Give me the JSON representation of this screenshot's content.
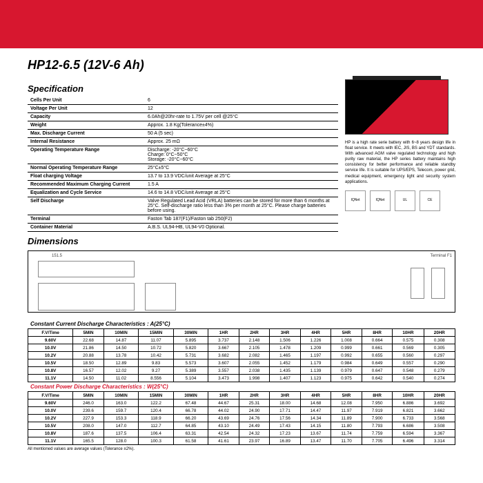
{
  "title": "HP12-6.5 (12V-6 Ah)",
  "sections": {
    "spec": "Specification",
    "dims": "Dimensions"
  },
  "spec": [
    {
      "label": "Cells Per Unit",
      "value": "6"
    },
    {
      "label": "Voltage Per Unit",
      "value": "12"
    },
    {
      "label": "Capacity",
      "value": "6.0Ah@20hr-rate to 1.75V per cell @25°C"
    },
    {
      "label": "Weight",
      "value": "Approx. 1.8 Kg(Tolerance±4%)"
    },
    {
      "label": "Max. Discharge Current",
      "value": "50 A (5 sec)"
    },
    {
      "label": "Internal Resistance",
      "value": "Approx. 25 mΩ"
    },
    {
      "label": "Operating Temperature Range",
      "value": "Discharge: -20°C~60°C\nCharge: 0°C~50°C\nStorage: -20°C~60°C"
    },
    {
      "label": "Normal Operating Temperature Range",
      "value": "25°C±5°C"
    },
    {
      "label": "Float charging Voltage",
      "value": "13.7 to 13.9 VDC/unit Average at 25°C"
    },
    {
      "label": "Recommended Maximum Charging Current",
      "value": "1.5 A"
    },
    {
      "label": "Equalization and Cycle Service",
      "value": "14.6 to 14.8 VDC/unit Average at 25°C"
    },
    {
      "label": "Self Discharge",
      "value": "Valve Regulated Lead Acid (VRLA) batteries can be  stored for more than 6 months at 25°C. Self-discharge ratio less than 3% per month at 25°C. Please charge batteries before using."
    },
    {
      "label": "Terminal",
      "value": "Faston Tab 187(F1)/Faston tab 250(F2)"
    },
    {
      "label": "Container Material",
      "value": "A.B.S. UL94-HB, UL94-V0 Optional."
    }
  ],
  "side": {
    "desc": "HP is a high rate serie battery with 6~8 years design life in float service. It meets with IEC, JIS, BS and YDT standards.\nWith advanced AGM valve regulated technology and high purity raw material, the HP series battery maintains high consistency for better performance and reliable standby service life.\nIt is suitable for UPS/EPS, Telecom, power grid, medical equipment, emergency light and security system applications.",
    "certs": [
      "IQNet",
      "IQNet",
      "UL",
      "CE"
    ]
  },
  "dims": {
    "length": "151.5",
    "term": "Terminal F1"
  },
  "ccd": {
    "title": "Constant Current Discharge Characteristics : A(25°C)",
    "headers": [
      "F.V/Time",
      "5MIN",
      "10MIN",
      "15MIN",
      "30MIN",
      "1HR",
      "2HR",
      "3HR",
      "4HR",
      "5HR",
      "8HR",
      "10HR",
      "20HR"
    ],
    "rows": [
      [
        "9.60V",
        "22.68",
        "14.87",
        "11.07",
        "5.895",
        "3.737",
        "2.148",
        "1.506",
        "1.226",
        "1.008",
        "0.664",
        "0.575",
        "0.308"
      ],
      [
        "10.0V",
        "21.86",
        "14.50",
        "10.72",
        "5.820",
        "3.667",
        "2.105",
        "1.478",
        "1.209",
        "0.999",
        "0.661",
        "0.569",
        "0.305"
      ],
      [
        "10.2V",
        "20.88",
        "13.78",
        "10.42",
        "5.731",
        "3.682",
        "2.082",
        "1.465",
        "1.197",
        "0.992",
        "0.655",
        "0.560",
        "0.297"
      ],
      [
        "10.5V",
        "18.50",
        "12.89",
        "9.83",
        "5.573",
        "3.607",
        "2.055",
        "1.452",
        "1.179",
        "0.984",
        "0.649",
        "0.557",
        "0.290"
      ],
      [
        "10.8V",
        "16.57",
        "12.02",
        "9.27",
        "5.389",
        "3.557",
        "2.038",
        "1.435",
        "1.139",
        "0.979",
        "0.647",
        "0.548",
        "0.279"
      ],
      [
        "11.1V",
        "14.50",
        "11.02",
        "8.556",
        "5.104",
        "3.473",
        "1.998",
        "1.407",
        "1.123",
        "0.975",
        "0.642",
        "0.540",
        "0.274"
      ]
    ]
  },
  "cpd": {
    "title": "Constant Power Discharge Characteristics : W(25°C)",
    "headers": [
      "F.V/Time",
      "5MIN",
      "10MIN",
      "15MIN",
      "30MIN",
      "1HR",
      "2HR",
      "3HR",
      "4HR",
      "5HR",
      "8HR",
      "10HR",
      "20HR"
    ],
    "rows": [
      [
        "9.60V",
        "246.0",
        "163.0",
        "122.2",
        "67.48",
        "44.67",
        "25.31",
        "18.00",
        "14.68",
        "12.08",
        "7.950",
        "6.886",
        "3.692"
      ],
      [
        "10.0V",
        "239.6",
        "159.7",
        "120.4",
        "66.78",
        "44.02",
        "24.90",
        "17.71",
        "14.47",
        "11.97",
        "7.919",
        "6.821",
        "3.662"
      ],
      [
        "10.2V",
        "227.9",
        "153.3",
        "118.9",
        "66.20",
        "43.69",
        "24.76",
        "17.56",
        "14.34",
        "11.89",
        "7.900",
        "6.733",
        "3.568"
      ],
      [
        "10.5V",
        "208.0",
        "147.0",
        "112.7",
        "64.85",
        "43.10",
        "24.49",
        "17.43",
        "14.15",
        "11.80",
        "7.793",
        "6.686",
        "3.508"
      ],
      [
        "10.8V",
        "187.6",
        "137.5",
        "106.4",
        "63.31",
        "42.54",
        "24.32",
        "17.23",
        "13.67",
        "11.74",
        "7.759",
        "6.594",
        "3.367"
      ],
      [
        "11.1V",
        "165.5",
        "128.0",
        "100.3",
        "61.58",
        "41.61",
        "23.97",
        "16.89",
        "13.47",
        "11.70",
        "7.705",
        "6.496",
        "3.314"
      ]
    ]
  },
  "footnote": "All mentioned values are average values          (Tolerance  ±2%)."
}
